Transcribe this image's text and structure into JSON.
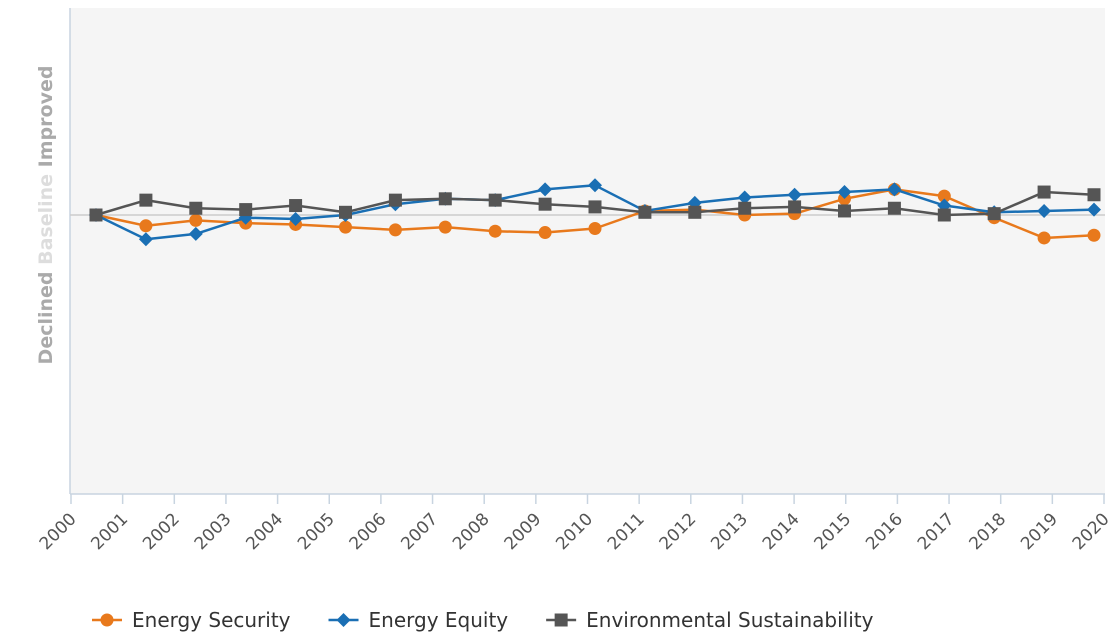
{
  "chart_data": {
    "type": "line",
    "categories": [
      "2000",
      "2001",
      "2002",
      "2003",
      "2004",
      "2005",
      "2006",
      "2007",
      "2008",
      "2009",
      "2010",
      "2011",
      "2012",
      "2013",
      "2014",
      "2015",
      "2016",
      "2017",
      "2018",
      "2019",
      "2020"
    ],
    "ylabel": {
      "low": "Declined",
      "mid": "Baseline",
      "high": "Improved"
    },
    "ylim": [
      -10,
      10
    ],
    "baseline": 0,
    "grid": false,
    "legend_position": "bottom-left",
    "series": [
      {
        "name": "Energy Security",
        "color": "#e8791c",
        "marker": "circle",
        "values": [
          0,
          -0.4,
          -0.2,
          -0.3,
          -0.35,
          -0.45,
          -0.55,
          -0.45,
          -0.6,
          -0.65,
          -0.5,
          0.15,
          0.2,
          0,
          0.05,
          0.6,
          0.95,
          0.7,
          -0.1,
          -0.85,
          -0.75
        ]
      },
      {
        "name": "Energy Equity",
        "color": "#1a6fb4",
        "marker": "diamond",
        "values": [
          0,
          -0.9,
          -0.7,
          -0.1,
          -0.15,
          0,
          0.4,
          0.6,
          0.55,
          0.95,
          1.1,
          0.15,
          0.45,
          0.65,
          0.75,
          0.85,
          0.95,
          0.35,
          0.1,
          0.15,
          0.2
        ]
      },
      {
        "name": "Environmental Sustainability",
        "color": "#555555",
        "marker": "square",
        "values": [
          0,
          0.55,
          0.25,
          0.2,
          0.35,
          0.1,
          0.55,
          0.6,
          0.55,
          0.4,
          0.3,
          0.1,
          0.1,
          0.25,
          0.3,
          0.15,
          0.25,
          0,
          0.05,
          0.85,
          0.75
        ]
      }
    ]
  }
}
